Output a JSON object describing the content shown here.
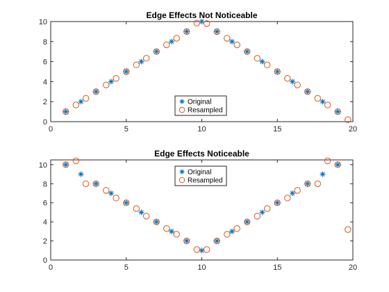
{
  "colors": {
    "original": "#0072BD",
    "resampled": "#D95319",
    "axis": "#262626",
    "background": "#ffffff"
  },
  "chart_data": [
    {
      "type": "scatter",
      "title": "Edge Effects Not Noticeable",
      "xlabel": "",
      "ylabel": "",
      "xlim": [
        0,
        20
      ],
      "ylim": [
        0,
        10
      ],
      "xticks": [
        0,
        5,
        10,
        15,
        20
      ],
      "yticks": [
        0,
        2,
        4,
        6,
        8,
        10
      ],
      "grid": false,
      "legend_position": "bottom-center",
      "series": [
        {
          "name": "Original",
          "marker": "asterisk",
          "x": [
            1,
            2,
            3,
            4,
            5,
            6,
            7,
            8,
            9,
            10,
            11,
            12,
            13,
            14,
            15,
            16,
            17,
            18,
            19
          ],
          "y": [
            1,
            2,
            3,
            4,
            5,
            6,
            7,
            8,
            9,
            10,
            9,
            8,
            7,
            6,
            5,
            4,
            3,
            2,
            1
          ]
        },
        {
          "name": "Resampled",
          "marker": "circle",
          "x": [
            1,
            1.67,
            2.33,
            3,
            3.67,
            4.33,
            5,
            5.67,
            6.33,
            7,
            7.67,
            8.33,
            9,
            9.67,
            10.33,
            11,
            11.67,
            12.33,
            13,
            13.67,
            14.33,
            15,
            15.67,
            16.33,
            17,
            17.67,
            18.33,
            19,
            19.67
          ],
          "y": [
            1,
            1.67,
            2.33,
            3,
            3.67,
            4.33,
            5,
            5.67,
            6.33,
            7,
            7.67,
            8.33,
            9,
            9.85,
            9.8,
            9,
            8.33,
            7.67,
            7,
            6.33,
            5.67,
            5,
            4.33,
            3.67,
            3,
            2.33,
            1.67,
            1,
            0.2
          ]
        }
      ]
    },
    {
      "type": "scatter",
      "title": "Edge Effects Noticeable",
      "xlabel": "",
      "ylabel": "",
      "xlim": [
        0,
        20
      ],
      "ylim": [
        0,
        10.5
      ],
      "xticks": [
        0,
        5,
        10,
        15,
        20
      ],
      "yticks": [
        0,
        2,
        4,
        6,
        8,
        10
      ],
      "grid": false,
      "legend_position": "top-center",
      "series": [
        {
          "name": "Original",
          "marker": "asterisk",
          "x": [
            1,
            2,
            3,
            4,
            5,
            6,
            7,
            8,
            9,
            10,
            11,
            12,
            13,
            14,
            15,
            16,
            17,
            18,
            19
          ],
          "y": [
            10,
            9,
            8,
            7,
            6,
            5,
            4,
            3,
            2,
            1,
            2,
            3,
            4,
            5,
            6,
            7,
            8,
            9,
            10
          ]
        },
        {
          "name": "Resampled",
          "marker": "circle",
          "x": [
            1,
            1.67,
            2.33,
            3,
            3.67,
            4.33,
            5,
            5.67,
            6.33,
            7,
            7.67,
            8.33,
            9,
            9.67,
            10.33,
            11,
            11.67,
            12.33,
            13,
            13.67,
            14.33,
            15,
            15.67,
            16.33,
            17,
            17.67,
            18.33,
            19,
            19.67
          ],
          "y": [
            10,
            10.4,
            8,
            8,
            7.3,
            6.5,
            6,
            5.4,
            4.6,
            4,
            3.3,
            2.7,
            2,
            1.1,
            1.1,
            2,
            2.7,
            3.3,
            4,
            4.6,
            5.4,
            6,
            6.5,
            7.3,
            8,
            8,
            10.4,
            10,
            3.2
          ]
        }
      ]
    }
  ]
}
